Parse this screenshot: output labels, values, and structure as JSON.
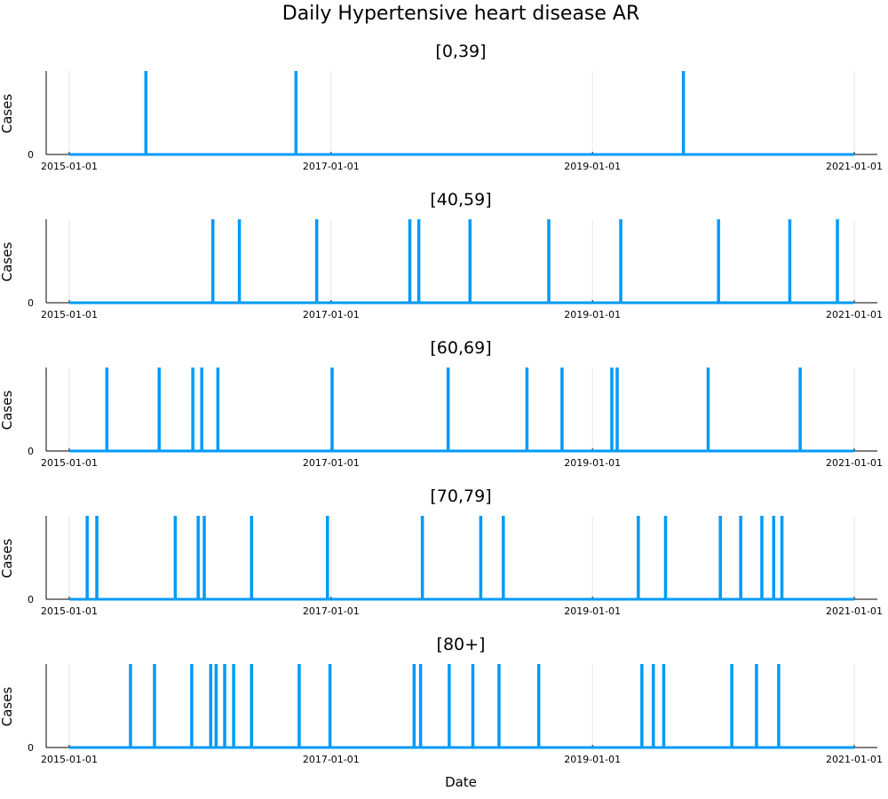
{
  "chart_data": {
    "type": "line",
    "title": "Daily Hypertensive heart disease AR",
    "xlabel": "Date",
    "ylabel": "Cases",
    "xlim": [
      "2015-01-01",
      "2021-01-01"
    ],
    "xticks": [
      "2015-01-01",
      "2017-01-01",
      "2019-01-01",
      "2021-01-01"
    ],
    "yticks": [
      "0"
    ],
    "ylim": [
      0,
      1
    ],
    "grid": true,
    "line_color": "#009af9",
    "panels": [
      {
        "title": "[0,39]",
        "spikes": [
          {
            "date": "2015-08-03",
            "value": 1
          },
          {
            "date": "2016-09-25",
            "value": 1
          },
          {
            "date": "2019-09-12",
            "value": 1
          }
        ]
      },
      {
        "title": "[40,59]",
        "spikes": [
          {
            "date": "2016-02-06",
            "value": 1
          },
          {
            "date": "2016-04-20",
            "value": 1
          },
          {
            "date": "2016-11-22",
            "value": 1
          },
          {
            "date": "2017-08-09",
            "value": 1
          },
          {
            "date": "2017-09-03",
            "value": 1
          },
          {
            "date": "2018-01-24",
            "value": 1
          },
          {
            "date": "2018-09-01",
            "value": 1
          },
          {
            "date": "2019-03-21",
            "value": 1
          },
          {
            "date": "2019-12-19",
            "value": 1
          },
          {
            "date": "2020-07-05",
            "value": 1
          },
          {
            "date": "2020-11-15",
            "value": 1
          }
        ]
      },
      {
        "title": "[60,69]",
        "spikes": [
          {
            "date": "2015-04-16",
            "value": 1
          },
          {
            "date": "2015-09-09",
            "value": 1
          },
          {
            "date": "2015-12-12",
            "value": 1
          },
          {
            "date": "2016-01-06",
            "value": 1
          },
          {
            "date": "2016-02-20",
            "value": 1
          },
          {
            "date": "2017-01-04",
            "value": 1
          },
          {
            "date": "2017-11-24",
            "value": 1
          },
          {
            "date": "2018-07-02",
            "value": 1
          },
          {
            "date": "2018-10-08",
            "value": 1
          },
          {
            "date": "2019-02-24",
            "value": 1
          },
          {
            "date": "2019-03-11",
            "value": 1
          },
          {
            "date": "2019-11-20",
            "value": 1
          },
          {
            "date": "2020-08-03",
            "value": 1
          }
        ]
      },
      {
        "title": "[70,79]",
        "spikes": [
          {
            "date": "2015-02-20",
            "value": 1
          },
          {
            "date": "2015-03-19",
            "value": 1
          },
          {
            "date": "2015-10-24",
            "value": 1
          },
          {
            "date": "2015-12-27",
            "value": 1
          },
          {
            "date": "2016-01-13",
            "value": 1
          },
          {
            "date": "2016-05-24",
            "value": 1
          },
          {
            "date": "2016-12-22",
            "value": 1
          },
          {
            "date": "2017-09-13",
            "value": 1
          },
          {
            "date": "2018-02-23",
            "value": 1
          },
          {
            "date": "2018-04-27",
            "value": 1
          },
          {
            "date": "2019-05-09",
            "value": 1
          },
          {
            "date": "2019-07-24",
            "value": 1
          },
          {
            "date": "2019-12-24",
            "value": 1
          },
          {
            "date": "2020-02-19",
            "value": 1
          },
          {
            "date": "2020-04-18",
            "value": 1
          },
          {
            "date": "2020-05-21",
            "value": 1
          },
          {
            "date": "2020-06-13",
            "value": 1
          }
        ]
      },
      {
        "title": "[80+]",
        "spikes": [
          {
            "date": "2015-06-21",
            "value": 1
          },
          {
            "date": "2015-08-27",
            "value": 1
          },
          {
            "date": "2015-12-09",
            "value": 1
          },
          {
            "date": "2016-01-31",
            "value": 1
          },
          {
            "date": "2016-02-15",
            "value": 1
          },
          {
            "date": "2016-03-10",
            "value": 1
          },
          {
            "date": "2016-04-04",
            "value": 1
          },
          {
            "date": "2016-05-24",
            "value": 1
          },
          {
            "date": "2016-10-04",
            "value": 1
          },
          {
            "date": "2016-12-29",
            "value": 1
          },
          {
            "date": "2017-08-21",
            "value": 1
          },
          {
            "date": "2017-09-08",
            "value": 1
          },
          {
            "date": "2017-11-27",
            "value": 1
          },
          {
            "date": "2018-02-01",
            "value": 1
          },
          {
            "date": "2018-04-15",
            "value": 1
          },
          {
            "date": "2018-08-04",
            "value": 1
          },
          {
            "date": "2019-05-19",
            "value": 1
          },
          {
            "date": "2019-06-20",
            "value": 1
          },
          {
            "date": "2019-07-19",
            "value": 1
          },
          {
            "date": "2020-01-25",
            "value": 1
          },
          {
            "date": "2020-04-03",
            "value": 1
          },
          {
            "date": "2020-06-04",
            "value": 1
          }
        ]
      }
    ]
  }
}
